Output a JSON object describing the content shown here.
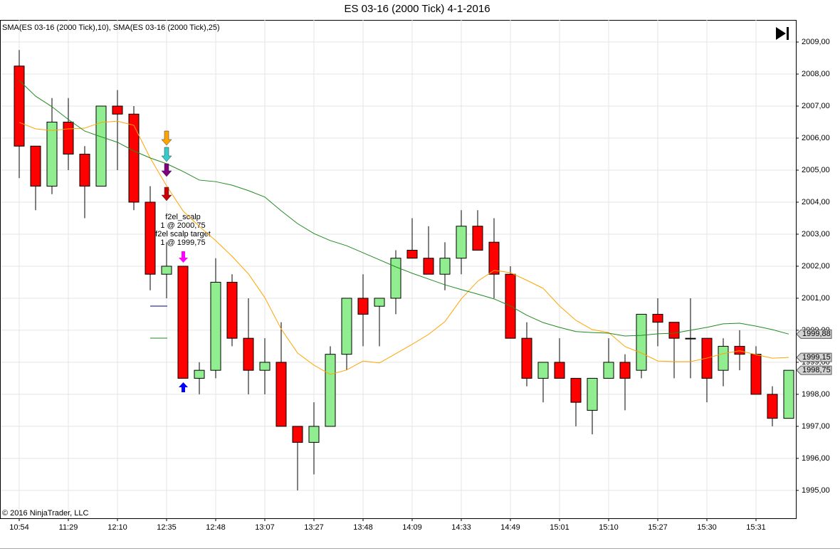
{
  "chart_data": {
    "type": "candlestick",
    "title": "ES 03-16 (2000 Tick)  4-1-2016",
    "subtitle": "SMA(ES 03-16 (2000 Tick),10), SMA(ES 03-16 (2000 Tick),25)",
    "footer": "© 2016 NinjaTrader, LLC",
    "categories": [
      "10:54",
      null,
      null,
      "11:29",
      null,
      null,
      "12:10",
      null,
      null,
      "12:35",
      null,
      null,
      "12:48",
      null,
      null,
      "13:07",
      null,
      null,
      "13:27",
      null,
      null,
      "13:48",
      null,
      null,
      "14:09",
      null,
      null,
      "14:33",
      null,
      null,
      "14:49",
      null,
      null,
      "15:01",
      null,
      null,
      "15:10",
      null,
      null,
      "15:27",
      null,
      null,
      "15:30",
      null,
      null,
      "15:31",
      null,
      null
    ],
    "open": [
      2008.25,
      2005.75,
      2004.5,
      2006.5,
      2005.5,
      2004.5,
      2007.0,
      2006.75,
      2004.0,
      2001.75,
      2002.0,
      1998.5,
      1998.75,
      2001.5,
      1999.75,
      1998.75,
      1999.0,
      1997.0,
      1996.5,
      1997.0,
      1999.25,
      2001.0,
      2000.75,
      2001.0,
      2002.5,
      2002.25,
      2001.75,
      2002.25,
      2003.25,
      2002.75,
      2001.75,
      1999.75,
      1998.5,
      1999.0,
      1998.5,
      1997.5,
      1998.5,
      1999.0,
      1998.75,
      2000.5,
      2000.25,
      1999.75,
      1999.75,
      1998.75,
      1999.5,
      1999.25,
      1998.0,
      1997.25
    ],
    "high": [
      2008.75,
      2005.75,
      2007.25,
      2007.25,
      2005.75,
      2007.0,
      2007.5,
      2007.0,
      2004.5,
      2002.75,
      2002.0,
      1999.0,
      2002.25,
      2001.75,
      2001.0,
      1999.75,
      2000.25,
      1997.0,
      1997.75,
      1999.5,
      2001.0,
      2001.75,
      2001.0,
      2002.5,
      2003.5,
      2003.25,
      2002.75,
      2003.75,
      2003.75,
      2003.5,
      2002.0,
      2000.25,
      1999.0,
      1999.75,
      1998.5,
      1998.5,
      1999.75,
      1999.25,
      2000.5,
      2001.0,
      2000.25,
      2001.0,
      1999.75,
      1999.75,
      2000.0,
      1999.5,
      1998.25,
      1998.75
    ],
    "low": [
      2004.75,
      2003.75,
      2004.25,
      2005.0,
      2003.5,
      2004.5,
      2005.0,
      2003.75,
      2001.25,
      2001.0,
      1998.5,
      1998.0,
      1998.5,
      1999.5,
      1998.0,
      1998.0,
      1997.0,
      1995.0,
      1995.5,
      1997.0,
      1998.75,
      1999.5,
      1999.5,
      2000.5,
      2002.25,
      2001.75,
      2001.25,
      2001.75,
      2002.5,
      2001.0,
      1999.75,
      1998.25,
      1997.75,
      1998.5,
      1997.0,
      1996.75,
      1998.5,
      1997.5,
      1998.5,
      1999.5,
      1998.5,
      1998.5,
      1997.75,
      1998.25,
      1998.75,
      1998.0,
      1997.0,
      1997.25
    ],
    "close": [
      2005.75,
      2004.5,
      2006.5,
      2005.5,
      2004.5,
      2007.0,
      2006.75,
      2004.0,
      2001.75,
      2002.0,
      1998.5,
      1998.75,
      2001.5,
      1999.75,
      1998.75,
      1999.0,
      1997.0,
      1996.5,
      1997.0,
      1999.25,
      2001.0,
      2000.5,
      2001.0,
      2002.25,
      2002.25,
      2001.75,
      2002.25,
      2003.25,
      2002.5,
      2001.75,
      1999.75,
      1998.5,
      1999.0,
      1998.5,
      1997.75,
      1998.5,
      1999.0,
      1998.5,
      2000.5,
      2000.25,
      1999.75,
      1999.75,
      1998.5,
      1999.5,
      1999.25,
      1998.0,
      1997.25,
      1998.75
    ],
    "up_color": "#90ee90",
    "down_color": "#ff0000",
    "series": [
      {
        "name": "SMA 10",
        "color": "#ffa500",
        "values": [
          2006.49,
          2006.29,
          2006.24,
          2006.29,
          2006.31,
          2006.49,
          2006.53,
          2006.4,
          2005.38,
          2004.51,
          2003.73,
          2003.24,
          2002.8,
          2002.31,
          2001.76,
          2001.02,
          2000.04,
          1999.29,
          1998.91,
          1998.62,
          1998.76,
          1999.04,
          1998.98,
          1999.27,
          1999.56,
          1999.87,
          2000.27,
          2000.98,
          2001.53,
          2001.87,
          2001.8,
          2001.56,
          2001.31,
          2000.76,
          2000.31,
          2000.02,
          1999.93,
          1999.49,
          1999.29,
          1999.04,
          1999.02,
          1999.02,
          1999.13,
          1999.27,
          1999.36,
          1999.24,
          1999.13,
          1999.15
        ]
      },
      {
        "name": "SMA 25",
        "color": "#228b22",
        "values": [
          2007.8,
          2007.31,
          2006.98,
          2006.58,
          2006.22,
          2006.04,
          2005.87,
          2005.6,
          2005.38,
          2005.2,
          2004.96,
          2004.69,
          2004.64,
          2004.53,
          2004.36,
          2004.16,
          2003.73,
          2003.33,
          2003.02,
          2002.8,
          2002.64,
          2002.42,
          2002.2,
          2001.98,
          2001.78,
          2001.6,
          2001.42,
          2001.27,
          2001.13,
          2000.98,
          2000.76,
          2000.47,
          2000.24,
          2000.09,
          1999.96,
          1999.93,
          1999.91,
          1999.82,
          1999.84,
          1999.89,
          1999.91,
          2000.0,
          2000.09,
          2000.2,
          2000.22,
          2000.13,
          2000.02,
          1999.88
        ]
      }
    ],
    "ylim": [
      1994.13,
      2009.69
    ],
    "yticks": [
      {
        "value": 1995,
        "label": "1995,00"
      },
      {
        "value": 1996,
        "label": "1996,00"
      },
      {
        "value": 1997,
        "label": "1997,00"
      },
      {
        "value": 1998,
        "label": "1998,00"
      },
      {
        "value": 1999,
        "label": "1999,00"
      },
      {
        "value": 2000,
        "label": "2000,00"
      },
      {
        "value": 2001,
        "label": "2001,00"
      },
      {
        "value": 2002,
        "label": "2002,00"
      },
      {
        "value": 2003,
        "label": "2003,00"
      },
      {
        "value": 2004,
        "label": "2004,00"
      },
      {
        "value": 2005,
        "label": "2005,00"
      },
      {
        "value": 2006,
        "label": "2006,00"
      },
      {
        "value": 2007,
        "label": "2007,00"
      },
      {
        "value": 2008,
        "label": "2008,00"
      },
      {
        "value": 2009,
        "label": "2009,00"
      }
    ],
    "price_markers": [
      {
        "value": 1999.88,
        "label": "1999,88"
      },
      {
        "value": 1999.15,
        "label": "1999,15"
      },
      {
        "value": 1998.75,
        "label": "1998,75"
      }
    ],
    "annotations": [
      "f2el_scalp",
      "1 @ 2000,75",
      "f2el scalp target",
      "1 @ 1999,75"
    ],
    "grid": true
  }
}
